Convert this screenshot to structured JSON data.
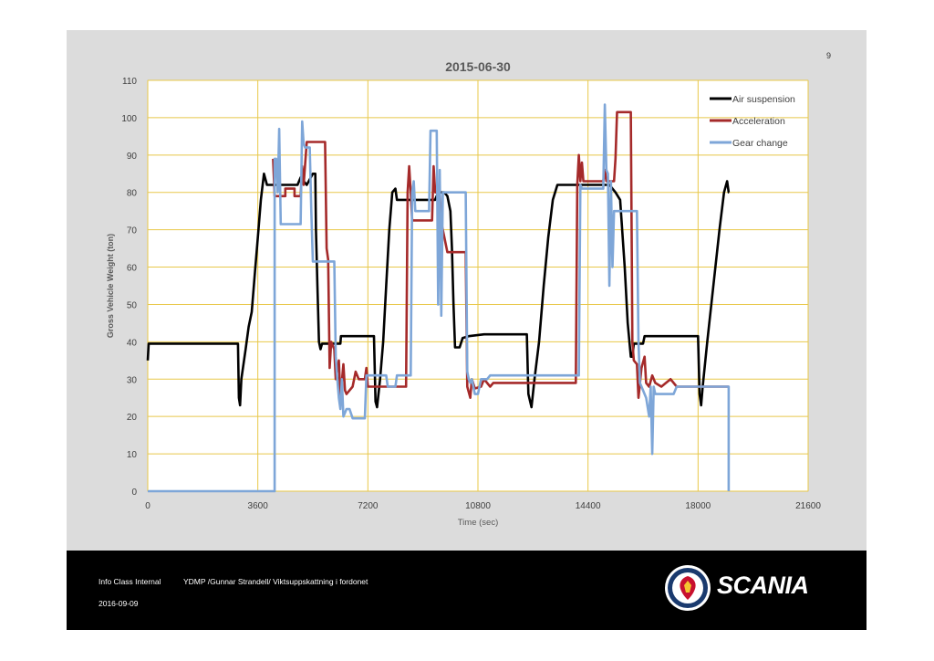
{
  "page_number": "9",
  "footer": {
    "classification": "Info Class Internal",
    "author_line": "YDMP /Gunnar Strandell/ Viktsuppskattning i fordonet",
    "date": "2016-09-09",
    "brand": "SCANIA"
  },
  "colors": {
    "air_suspension": "#000000",
    "acceleration": "#a52a2a",
    "gear_change": "#7ea6d8",
    "grid": "#e8c84a",
    "plot_bg": "#ffffff"
  },
  "chart_data": {
    "type": "line",
    "title": "2015-06-30",
    "xlabel": "Time (sec)",
    "ylabel": "Gross Vehicle Weight (ton)",
    "xlim": [
      0,
      21600
    ],
    "ylim": [
      0,
      110
    ],
    "xticks": [
      0,
      3600,
      7200,
      10800,
      14400,
      18000,
      21600
    ],
    "yticks": [
      0,
      10,
      20,
      30,
      40,
      50,
      60,
      70,
      80,
      90,
      100,
      110
    ],
    "grid": true,
    "legend_position": "top-right",
    "series": [
      {
        "name": "Air suspension",
        "color": "#000000",
        "points": [
          [
            0,
            35
          ],
          [
            30,
            39.5
          ],
          [
            2950,
            39.5
          ],
          [
            2980,
            25
          ],
          [
            3020,
            23
          ],
          [
            3060,
            30
          ],
          [
            3200,
            38
          ],
          [
            3300,
            44
          ],
          [
            3400,
            48
          ],
          [
            3500,
            58
          ],
          [
            3600,
            68
          ],
          [
            3700,
            78
          ],
          [
            3800,
            85
          ],
          [
            3900,
            82
          ],
          [
            4000,
            82
          ],
          [
            4900,
            82
          ],
          [
            5000,
            84
          ],
          [
            5200,
            82
          ],
          [
            5400,
            85
          ],
          [
            5480,
            85
          ],
          [
            5500,
            70
          ],
          [
            5550,
            55
          ],
          [
            5600,
            40
          ],
          [
            5650,
            38
          ],
          [
            5700,
            39.5
          ],
          [
            6300,
            39.5
          ],
          [
            6320,
            41.5
          ],
          [
            7400,
            41.5
          ],
          [
            7450,
            24
          ],
          [
            7500,
            22.5
          ],
          [
            7600,
            30
          ],
          [
            7700,
            40
          ],
          [
            7800,
            55
          ],
          [
            7900,
            70
          ],
          [
            8000,
            80
          ],
          [
            8100,
            81
          ],
          [
            8150,
            78
          ],
          [
            9400,
            78
          ],
          [
            9500,
            80
          ],
          [
            9700,
            80
          ],
          [
            9800,
            79
          ],
          [
            9900,
            75
          ],
          [
            9950,
            65
          ],
          [
            10000,
            50
          ],
          [
            10050,
            38.5
          ],
          [
            10200,
            38.5
          ],
          [
            10300,
            41
          ],
          [
            10500,
            41.5
          ],
          [
            11000,
            42
          ],
          [
            12400,
            42
          ],
          [
            12450,
            26
          ],
          [
            12550,
            22.5
          ],
          [
            12650,
            30
          ],
          [
            12800,
            40
          ],
          [
            12950,
            55
          ],
          [
            13100,
            68
          ],
          [
            13250,
            78
          ],
          [
            13400,
            82
          ],
          [
            13500,
            82
          ],
          [
            14500,
            82
          ],
          [
            14600,
            82
          ],
          [
            15100,
            82
          ],
          [
            15300,
            80
          ],
          [
            15450,
            78
          ],
          [
            15600,
            60
          ],
          [
            15700,
            45
          ],
          [
            15800,
            36
          ],
          [
            15850,
            36
          ],
          [
            15900,
            39.5
          ],
          [
            16200,
            39.5
          ],
          [
            16250,
            41.5
          ],
          [
            17900,
            41.5
          ],
          [
            18000,
            41.5
          ],
          [
            18050,
            26
          ],
          [
            18100,
            23
          ],
          [
            18150,
            28
          ],
          [
            18300,
            40
          ],
          [
            18500,
            55
          ],
          [
            18700,
            70
          ],
          [
            18850,
            80
          ],
          [
            18950,
            83
          ],
          [
            19000,
            80
          ],
          [
            19010,
            80
          ]
        ]
      },
      {
        "name": "Acceleration",
        "color": "#a52a2a",
        "points": [
          [
            4100,
            89
          ],
          [
            4150,
            79
          ],
          [
            4500,
            79
          ],
          [
            4500,
            81
          ],
          [
            4800,
            81
          ],
          [
            4800,
            79
          ],
          [
            5000,
            79
          ],
          [
            5050,
            87
          ],
          [
            5100,
            82
          ],
          [
            5200,
            93.5
          ],
          [
            5800,
            93.5
          ],
          [
            5850,
            65
          ],
          [
            5900,
            62
          ],
          [
            5950,
            33
          ],
          [
            6000,
            40
          ],
          [
            6100,
            38
          ],
          [
            6150,
            30
          ],
          [
            6250,
            35
          ],
          [
            6300,
            25
          ],
          [
            6400,
            34
          ],
          [
            6450,
            27
          ],
          [
            6500,
            26
          ],
          [
            6700,
            28
          ],
          [
            6800,
            32
          ],
          [
            6900,
            30
          ],
          [
            7100,
            30
          ],
          [
            7150,
            33
          ],
          [
            7200,
            28
          ],
          [
            8450,
            28
          ],
          [
            8500,
            80
          ],
          [
            8550,
            87
          ],
          [
            8600,
            80
          ],
          [
            8650,
            72.5
          ],
          [
            9300,
            72.5
          ],
          [
            9350,
            87
          ],
          [
            9400,
            80
          ],
          [
            9550,
            80
          ],
          [
            9600,
            72
          ],
          [
            9800,
            64
          ],
          [
            10400,
            64
          ],
          [
            10450,
            28
          ],
          [
            10550,
            25
          ],
          [
            10600,
            30
          ],
          [
            10700,
            27.5
          ],
          [
            10900,
            28
          ],
          [
            11000,
            30
          ],
          [
            11200,
            28
          ],
          [
            11300,
            29
          ],
          [
            14000,
            29
          ],
          [
            14050,
            82
          ],
          [
            14100,
            90
          ],
          [
            14150,
            83
          ],
          [
            14200,
            88
          ],
          [
            14250,
            83
          ],
          [
            14900,
            83
          ],
          [
            14950,
            86
          ],
          [
            15000,
            83
          ],
          [
            15250,
            83
          ],
          [
            15300,
            89
          ],
          [
            15350,
            101.5
          ],
          [
            15800,
            101.5
          ],
          [
            15850,
            40
          ],
          [
            15900,
            35
          ],
          [
            16000,
            34
          ],
          [
            16050,
            25
          ],
          [
            16150,
            33
          ],
          [
            16250,
            36
          ],
          [
            16300,
            29
          ],
          [
            16400,
            28
          ],
          [
            16500,
            31
          ],
          [
            16600,
            29
          ],
          [
            16800,
            28
          ],
          [
            17100,
            30
          ],
          [
            17300,
            28
          ],
          [
            19000,
            28
          ]
        ]
      },
      {
        "name": "Gear change",
        "color": "#7ea6d8",
        "points": [
          [
            0,
            0
          ],
          [
            4150,
            0
          ],
          [
            4150,
            89
          ],
          [
            4200,
            89
          ],
          [
            4250,
            80
          ],
          [
            4300,
            97
          ],
          [
            4350,
            71.5
          ],
          [
            5000,
            71.5
          ],
          [
            5050,
            99
          ],
          [
            5100,
            93
          ],
          [
            5150,
            92
          ],
          [
            5300,
            92
          ],
          [
            5350,
            75
          ],
          [
            5400,
            61.5
          ],
          [
            6100,
            61.5
          ],
          [
            6150,
            36
          ],
          [
            6200,
            30
          ],
          [
            6250,
            25
          ],
          [
            6300,
            22
          ],
          [
            6350,
            30
          ],
          [
            6400,
            20
          ],
          [
            6500,
            22
          ],
          [
            6600,
            22
          ],
          [
            6700,
            19.5
          ],
          [
            7000,
            19.5
          ],
          [
            7100,
            19.5
          ],
          [
            7150,
            31
          ],
          [
            7800,
            31
          ],
          [
            7850,
            28
          ],
          [
            8100,
            28
          ],
          [
            8150,
            31
          ],
          [
            8600,
            31
          ],
          [
            8650,
            80
          ],
          [
            8700,
            83
          ],
          [
            8750,
            75
          ],
          [
            9200,
            75
          ],
          [
            9250,
            96.5
          ],
          [
            9450,
            96.5
          ],
          [
            9500,
            50
          ],
          [
            9550,
            86
          ],
          [
            9600,
            47
          ],
          [
            9650,
            80
          ],
          [
            10400,
            80
          ],
          [
            10450,
            32
          ],
          [
            10500,
            30
          ],
          [
            10550,
            29
          ],
          [
            10600,
            30
          ],
          [
            10700,
            26
          ],
          [
            10800,
            26
          ],
          [
            10900,
            30
          ],
          [
            11100,
            30
          ],
          [
            11200,
            31
          ],
          [
            14100,
            31
          ],
          [
            14150,
            82
          ],
          [
            14200,
            81
          ],
          [
            14900,
            81
          ],
          [
            14950,
            103.5
          ],
          [
            15000,
            86
          ],
          [
            15050,
            85
          ],
          [
            15100,
            55
          ],
          [
            15150,
            83
          ],
          [
            15200,
            60
          ],
          [
            15250,
            75
          ],
          [
            16000,
            75
          ],
          [
            16050,
            40
          ],
          [
            16100,
            29
          ],
          [
            16200,
            27
          ],
          [
            16300,
            25
          ],
          [
            16400,
            20
          ],
          [
            16450,
            28
          ],
          [
            16500,
            10
          ],
          [
            16550,
            28
          ],
          [
            16600,
            26
          ],
          [
            17200,
            26
          ],
          [
            17300,
            28
          ],
          [
            19000,
            28
          ],
          [
            19000,
            0
          ]
        ]
      }
    ]
  }
}
